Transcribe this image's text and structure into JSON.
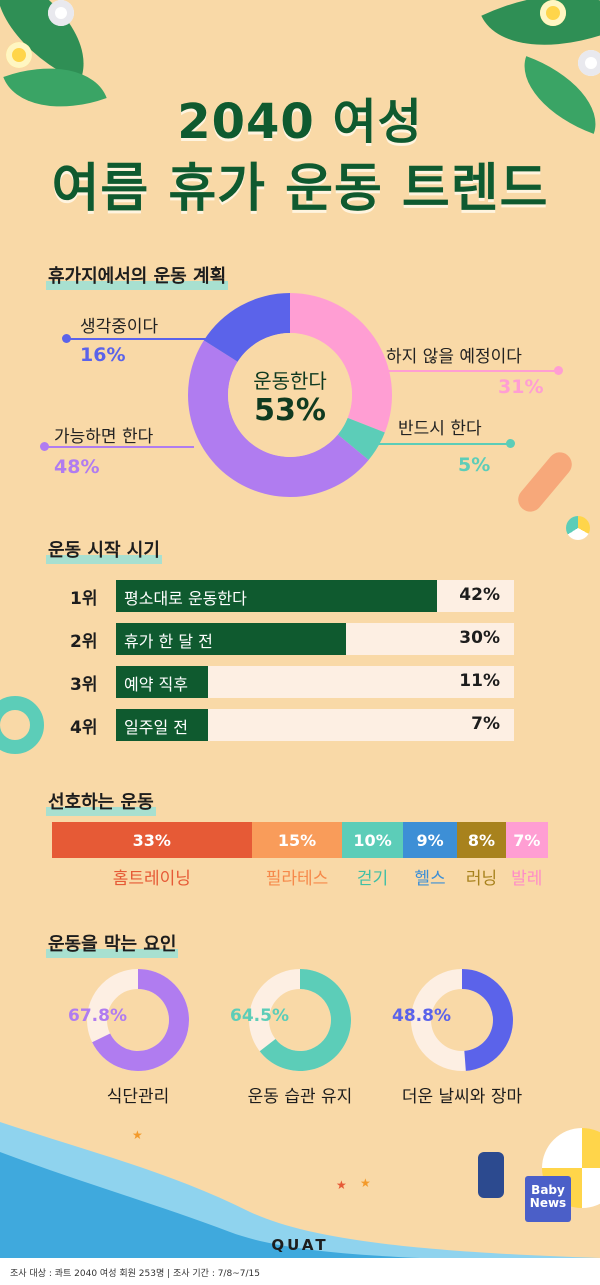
{
  "title": {
    "line1": "2040 여성",
    "line2": "여름 휴가 운동 트렌드"
  },
  "colors": {
    "green": "#0f5a2f",
    "purple": "#b07cf0",
    "blue": "#5b63ea",
    "pink": "#ff9ed3",
    "teal": "#5ccdb8"
  },
  "sections": {
    "plan": "휴가지에서의 운동 계획",
    "timing": "운동 시작 시기",
    "preferred": "선호하는 운동",
    "barriers": "운동을 막는 요인"
  },
  "chart_data": [
    {
      "type": "pie",
      "title": "휴가지에서의 운동 계획",
      "center_label": "운동한다",
      "center_value": "53%",
      "slices": [
        {
          "name": "하지 않을 예정이다",
          "value": 31,
          "display": "31%",
          "color": "#ff9ed3"
        },
        {
          "name": "반드시 한다",
          "value": 5,
          "display": "5%",
          "color": "#5ccdb8"
        },
        {
          "name": "가능하면 한다",
          "value": 48,
          "display": "48%",
          "color": "#b07cf0"
        },
        {
          "name": "생각중이다",
          "value": 16,
          "display": "16%",
          "color": "#5b63ea"
        }
      ]
    },
    {
      "type": "bar",
      "title": "운동 시작 시기",
      "rows": [
        {
          "rank": "1위",
          "label": "평소대로 운동한다",
          "value": 42,
          "display": "42%"
        },
        {
          "rank": "2위",
          "label": "휴가 한 달 전",
          "value": 30,
          "display": "30%"
        },
        {
          "rank": "3위",
          "label": "예약 직후",
          "value": 11,
          "display": "11%"
        },
        {
          "rank": "4위",
          "label": "일주일 전",
          "value": 7,
          "display": "7%"
        }
      ]
    },
    {
      "type": "bar",
      "title": "선호하는 운동",
      "stacked": true,
      "segments": [
        {
          "label": "홈트레이닝",
          "value": 33,
          "display": "33%",
          "color": "#e65a36",
          "text_color": "#e65a36"
        },
        {
          "label": "필라테스",
          "value": 15,
          "display": "15%",
          "color": "#f99c5a",
          "text_color": "#f6894a"
        },
        {
          "label": "걷기",
          "value": 10,
          "display": "10%",
          "color": "#5ccdb8",
          "text_color": "#3fbfa5"
        },
        {
          "label": "헬스",
          "value": 9,
          "display": "9%",
          "color": "#3d8fd6",
          "text_color": "#3d8fd6"
        },
        {
          "label": "러닝",
          "value": 8,
          "display": "8%",
          "color": "#a8821d",
          "text_color": "#a8821d"
        },
        {
          "label": "발레",
          "value": 7,
          "display": "7%",
          "color": "#ff9ed3",
          "text_color": "#ff8cc7"
        }
      ]
    },
    {
      "type": "pie",
      "title": "운동을 막는 요인",
      "items": [
        {
          "label": "식단관리",
          "value": 67.8,
          "display": "67.8%",
          "color": "#b07cf0",
          "text_color": "#b07cf0"
        },
        {
          "label": "운동 습관 유지",
          "value": 64.5,
          "display": "64.5%",
          "color": "#5ccdb8",
          "text_color": "#5ccdb8"
        },
        {
          "label": "더운 날씨와 장마",
          "value": 48.8,
          "display": "48.8%",
          "color": "#5b63ea",
          "text_color": "#5b63ea"
        }
      ]
    }
  ],
  "brand": "QUAT",
  "news_logo": {
    "line1": "Baby",
    "line2": "News"
  },
  "footer": "조사 대상 : 콰트 2040 여성 회원 253명 | 조사 기간 : 7/8~7/15"
}
